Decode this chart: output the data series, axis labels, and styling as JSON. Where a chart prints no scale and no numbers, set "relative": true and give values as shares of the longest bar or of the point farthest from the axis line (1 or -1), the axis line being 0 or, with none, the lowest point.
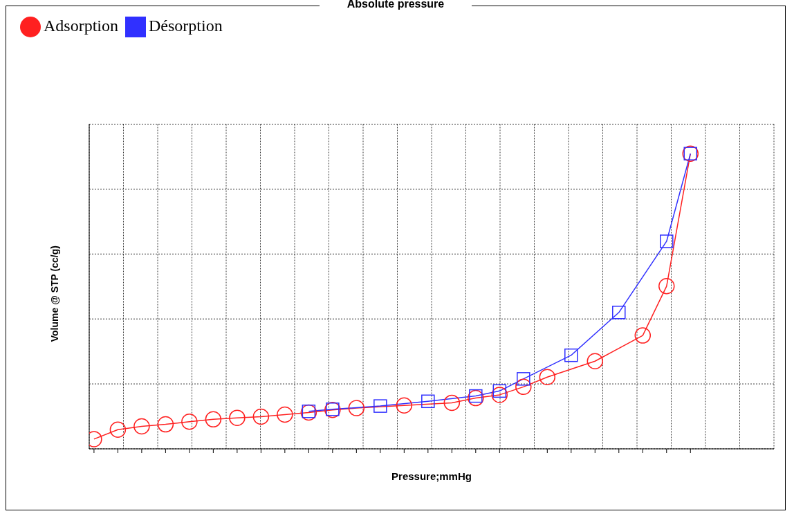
{
  "chart_data": {
    "type": "line",
    "title": "Absolute pressure",
    "xlabel": "Pressure;mmHg",
    "ylabel": "Volume @ STP (cc/g)",
    "relative": true,
    "grid": true,
    "legend": "top left",
    "categories": [
      null,
      null,
      null,
      null,
      null,
      null,
      null,
      null,
      null,
      null,
      null,
      null,
      null,
      null,
      null,
      null,
      null,
      null,
      null,
      null,
      null,
      null,
      null,
      null,
      null,
      null
    ],
    "series": [
      {
        "name": "Adsorption",
        "color": "#ff2020",
        "marker": "circle",
        "values": [
          0.033,
          0.065,
          0.076,
          0.083,
          0.092,
          0.1,
          0.105,
          0.109,
          0.116,
          0.123,
          0.132,
          0.138,
          null,
          0.147,
          null,
          0.156,
          0.172,
          0.183,
          0.21,
          0.243,
          null,
          0.297,
          null,
          0.384,
          0.551,
          1
        ]
      },
      {
        "name": "Désorption",
        "color": "#3030ff",
        "marker": "square",
        "values": [
          null,
          null,
          null,
          null,
          null,
          null,
          null,
          null,
          null,
          0.127,
          0.134,
          null,
          0.145,
          null,
          0.161,
          null,
          0.179,
          0.196,
          0.237,
          null,
          0.317,
          null,
          0.462,
          null,
          0.703,
          1
        ]
      }
    ]
  }
}
